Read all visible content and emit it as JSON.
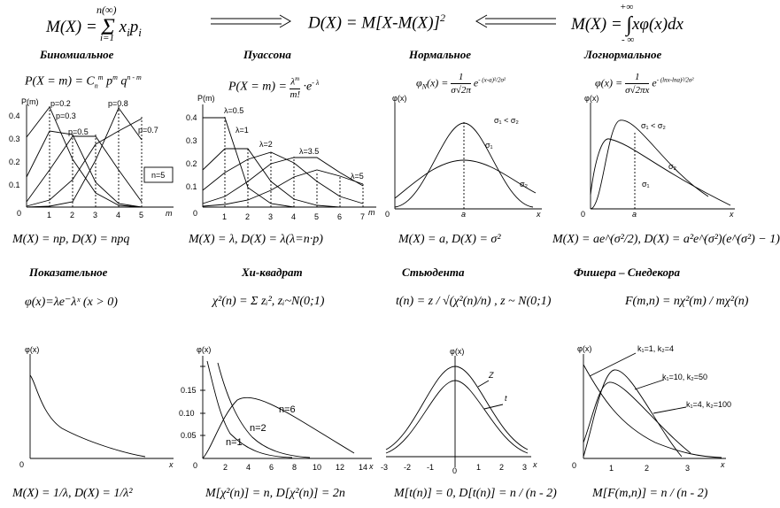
{
  "top": {
    "left_formula": "M(X) = Σ xᵢpᵢ",
    "left_sum_top": "n(∞)",
    "left_sum_bottom": "i=1",
    "middle_formula": "D(X) = M[X-M(X)]²",
    "right_formula": "M(X) = ∫ xφ(x)dx",
    "right_int_top": "+∞",
    "right_int_bottom": "- ∞"
  },
  "row1": {
    "titles": [
      "Биномиальное",
      "Пуассона",
      "Нормальное",
      "Логнормальное"
    ],
    "formulas": [
      "P(X = m) = Cₙᵐ pᵐ qⁿ⁻ᵐ",
      "P(X = m) = λᵐ/m! · e⁻λ",
      "φN(x) = 1/(σ√2π) e^(-(x-a)²/2σ²)",
      "φ(x) = 1/(σ√2πx) e^(-(lnx-lna)²/2σ²)"
    ],
    "moments": [
      "M(X) = np, D(X) = npq",
      "M(X) = λ,   D(X) = λ(λ=n·p)",
      "M(X) = a,   D(X) = σ²",
      "M(X) = ae^(σ²/2),  D(X) = a²e^(σ²)(e^(σ²) − 1)"
    ],
    "binomial": {
      "ylabel": "P(m)",
      "xlabel": "m",
      "origin": "0",
      "yticks": [
        "0.1",
        "0.2",
        "0.3",
        "0.4"
      ],
      "xticks": [
        "1",
        "2",
        "3",
        "4",
        "5"
      ],
      "curve_labels": [
        "p=0.2",
        "p=0.3",
        "p=0.5",
        "p=0.8",
        "p=0.7"
      ],
      "box": "n=5"
    },
    "poisson": {
      "ylabel": "P(m)",
      "xlabel": "m",
      "origin": "0",
      "yticks": [
        "0.1",
        "0.2",
        "0.3",
        "0.4"
      ],
      "xticks": [
        "1",
        "2",
        "3",
        "4",
        "5",
        "6",
        "7"
      ],
      "curve_labels": [
        "λ=0.5",
        "λ=1",
        "λ=2",
        "λ=3.5",
        "λ=5"
      ]
    },
    "normal": {
      "ylabel": "φ(x)",
      "xlabel": "x",
      "origin": "0",
      "a": "a",
      "labels": [
        "σ₁ < σ₂",
        "σ₁",
        "σ₂"
      ]
    },
    "lognormal": {
      "ylabel": "φ(x)",
      "xlabel": "x",
      "origin": "0",
      "a": "a",
      "labels": [
        "σ₁ < σ₂",
        "σ₂",
        "σ₁"
      ]
    }
  },
  "row2": {
    "titles": [
      "Показательное",
      "Хи-квадрат",
      "Стьюдента",
      "Фишера – Снедекора"
    ],
    "formulas": [
      "φ(x)=λe⁻λˣ (x > 0)",
      "χ²(n) = Σ zᵢ²,  zᵢ~N(0;1)",
      "t(n) = z / √(χ²(n)/n) ,  z ~ N(0;1)",
      "F(m,n) = nχ²(m) / mχ²(n)"
    ],
    "moments": [
      "M(X) = 1/λ,  D(X) = 1/λ²",
      "M[χ²(n)] = n,   D[χ²(n)] = 2n",
      "M[t(n)] = 0,    D[t(n)] = n / (n - 2)",
      "M[F(m,n)] = n / (n - 2)"
    ],
    "exponential": {
      "ylabel": "φ(x)",
      "xlabel": "x",
      "origin": "0"
    },
    "chisq": {
      "ylabel": "φ(x)",
      "xlabel": "x",
      "origin": "0",
      "yticks": [
        "0.05",
        "0.10",
        "0.15"
      ],
      "xticks": [
        "2",
        "4",
        "6",
        "8",
        "10",
        "12",
        "14"
      ],
      "curve_labels": [
        "n=1",
        "n=2",
        "n=6"
      ]
    },
    "student": {
      "ylabel": "φ(x)",
      "xlabel": "x",
      "origin": "0",
      "xticks": [
        "-3",
        "-2",
        "-1",
        "1",
        "2",
        "3"
      ],
      "curve_labels": [
        "Z",
        "t"
      ]
    },
    "fisher": {
      "ylabel": "φ(x)",
      "xlabel": "x",
      "origin": "0",
      "xticks": [
        "1",
        "2",
        "3"
      ],
      "curve_labels": [
        "k₁=1, k₂=4",
        "k₁=10, k₂=50",
        "k₁=4, k₂=100"
      ]
    }
  }
}
